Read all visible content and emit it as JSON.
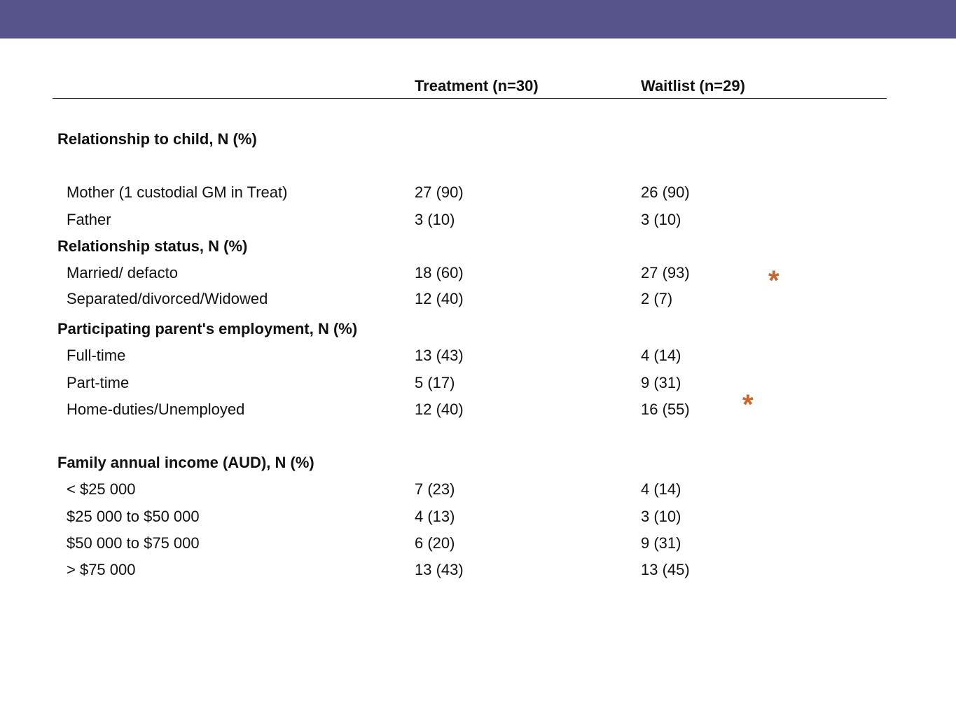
{
  "colors": {
    "banner": "#56548a",
    "asterisk": "#c8662e"
  },
  "table": {
    "headers": {
      "treatment": "Treatment  (n=30)",
      "waitlist": "Waitlist (n=29)"
    },
    "sections": [
      {
        "title": "Relationship to child, N (%)",
        "rows": [
          {
            "label": "Mother (1 custodial GM in Treat)",
            "treatment": "27 (90)",
            "waitlist": "26 (90)"
          },
          {
            "label": "Father",
            "treatment": "3 (10)",
            "waitlist": "3 (10)"
          }
        ]
      },
      {
        "title": "Relationship status, N (%)",
        "rows": [
          {
            "label": "Married/ defacto",
            "treatment": "18 (60)",
            "waitlist": "27 (93)"
          },
          {
            "label": "Separated/divorced/Widowed",
            "treatment": "12 (40)",
            "waitlist": "2 (7)"
          }
        ]
      },
      {
        "title": "Participating parent's employment, N (%)",
        "rows": [
          {
            "label": "Full-time",
            "treatment": "13 (43)",
            "waitlist": "4 (14)"
          },
          {
            "label": "Part-time",
            "treatment": "5 (17)",
            "waitlist": "9 (31)"
          },
          {
            "label": "Home-duties/Unemployed",
            "treatment": "12 (40)",
            "waitlist": "16 (55)"
          }
        ]
      },
      {
        "title": "Family annual income (AUD), N (%)",
        "rows": [
          {
            "label": "< $25 000",
            "treatment": "7 (23)",
            "waitlist": "4 (14)"
          },
          {
            "label": "$25 000 to $50 000",
            "treatment": "4 (13)",
            "waitlist": "3 (10)"
          },
          {
            "label": "$50 000 to $75 000",
            "treatment": "6 (20)",
            "waitlist": "9 (31)"
          },
          {
            "label": "> $75 000",
            "treatment": "13 (43)",
            "waitlist": "13 (45)"
          }
        ]
      }
    ],
    "significance_markers": [
      "*",
      "*"
    ]
  }
}
